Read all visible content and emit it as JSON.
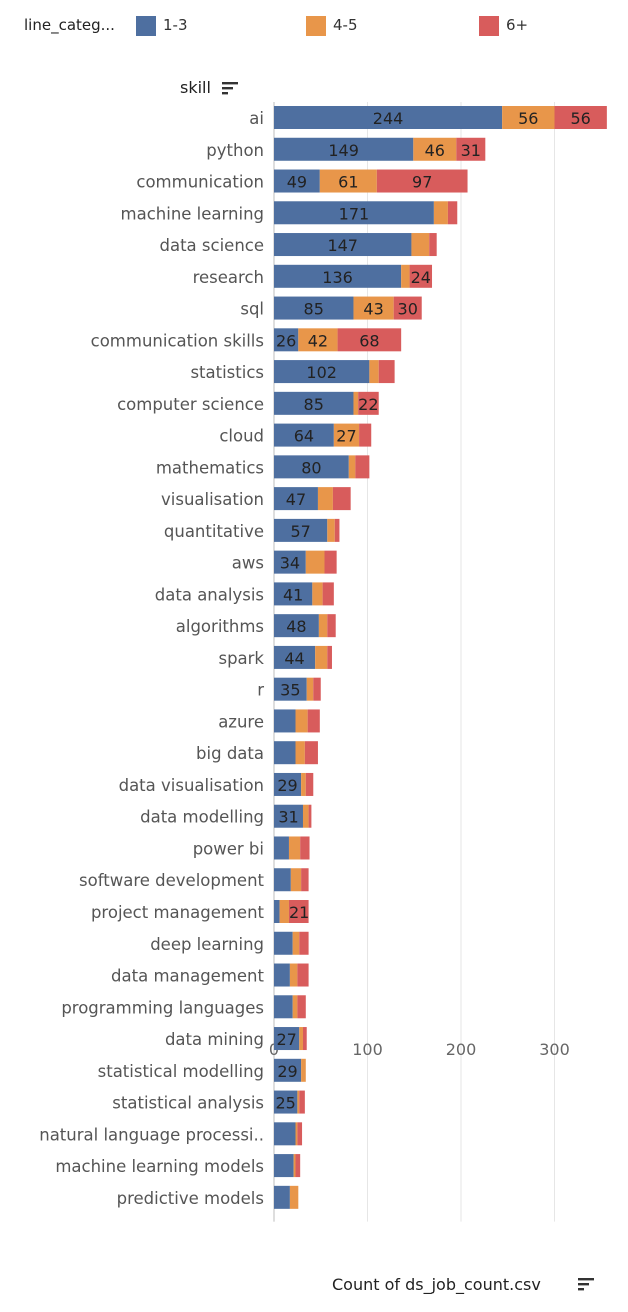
{
  "legend": {
    "title": "line_categ...",
    "items": [
      {
        "label": "1-3",
        "color": "#4e6fa0"
      },
      {
        "label": "4-5",
        "color": "#e8964a"
      },
      {
        "label": "6+",
        "color": "#d85c5c"
      }
    ]
  },
  "header": {
    "skill_label": "skill",
    "sort_icon": "sort-descending-icon"
  },
  "chart_data": {
    "type": "bar",
    "orientation": "horizontal",
    "stacked": true,
    "xlabel": "Count of ds_job_count.csv",
    "ylabel": "skill",
    "xlim": [
      0,
      360
    ],
    "xticks": [
      0,
      100,
      200,
      300
    ],
    "grid": true,
    "legend_position": "top",
    "categories": [
      "ai",
      "python",
      "communication",
      "machine learning",
      "data science",
      "research",
      "sql",
      "communication skills",
      "statistics",
      "computer science",
      "cloud",
      "mathematics",
      "visualisation",
      "quantitative",
      "aws",
      "data analysis",
      "algorithms",
      "spark",
      "r",
      "azure",
      "big data",
      "data visualisation",
      "data modelling",
      "power bi",
      "software development",
      "project management",
      "deep learning",
      "data management",
      "programming languages",
      "data mining",
      "statistical modelling",
      "statistical analysis",
      "natural language processi..",
      "machine learning models",
      "predictive models"
    ],
    "series": [
      {
        "name": "1-3",
        "color": "#4e6fa0",
        "values": [
          244,
          149,
          49,
          171,
          147,
          136,
          85,
          26,
          102,
          85,
          64,
          80,
          47,
          57,
          34,
          41,
          48,
          44,
          35,
          23,
          23,
          29,
          31,
          16,
          18,
          6,
          20,
          17,
          20,
          27,
          29,
          25,
          23,
          21,
          17
        ]
      },
      {
        "name": "4-5",
        "color": "#e8964a",
        "values": [
          56,
          46,
          61,
          15,
          19,
          9,
          43,
          42,
          10,
          5,
          27,
          7,
          16,
          8,
          20,
          11,
          9,
          13,
          7,
          13,
          10,
          5,
          6,
          12,
          11,
          10,
          7,
          8,
          5,
          4,
          5,
          2,
          2,
          2,
          9
        ]
      },
      {
        "name": "6+",
        "color": "#d85c5c",
        "values": [
          56,
          31,
          97,
          10,
          8,
          24,
          30,
          68,
          17,
          22,
          13,
          15,
          19,
          5,
          13,
          12,
          9,
          5,
          8,
          13,
          14,
          8,
          3,
          10,
          8,
          21,
          10,
          12,
          9,
          4,
          0,
          6,
          5,
          5,
          0
        ]
      }
    ],
    "labels": [
      [
        "244",
        "56",
        "56"
      ],
      [
        "149",
        "46",
        "31"
      ],
      [
        "49",
        "61",
        "97"
      ],
      [
        "171",
        "",
        ""
      ],
      [
        "147",
        "",
        ""
      ],
      [
        "136",
        "",
        "24"
      ],
      [
        "85",
        "43",
        "30"
      ],
      [
        "26",
        "42",
        "68"
      ],
      [
        "102",
        "",
        ""
      ],
      [
        "85",
        "",
        "22"
      ],
      [
        "64",
        "27",
        ""
      ],
      [
        "80",
        "",
        ""
      ],
      [
        "47",
        "",
        ""
      ],
      [
        "57",
        "",
        ""
      ],
      [
        "34",
        "",
        ""
      ],
      [
        "41",
        "",
        ""
      ],
      [
        "48",
        "",
        ""
      ],
      [
        "44",
        "",
        ""
      ],
      [
        "35",
        "",
        ""
      ],
      [
        "",
        "",
        ""
      ],
      [
        "",
        "",
        ""
      ],
      [
        "29",
        "",
        ""
      ],
      [
        "31",
        "",
        ""
      ],
      [
        "",
        "",
        ""
      ],
      [
        "",
        "",
        ""
      ],
      [
        "",
        "",
        "21"
      ],
      [
        "",
        "",
        ""
      ],
      [
        "",
        "",
        ""
      ],
      [
        "",
        "",
        ""
      ],
      [
        "27",
        "",
        ""
      ],
      [
        "29",
        "",
        ""
      ],
      [
        "25",
        "",
        ""
      ],
      [
        "",
        "",
        ""
      ],
      [
        "",
        "",
        ""
      ],
      [
        "",
        "",
        ""
      ]
    ]
  }
}
